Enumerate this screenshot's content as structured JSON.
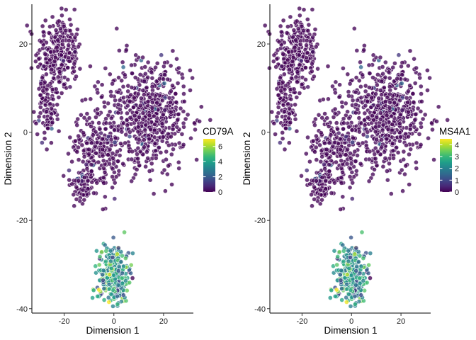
{
  "chart_data": [
    {
      "type": "scatter",
      "xlabel": "Dimension 1",
      "ylabel": "Dimension 2",
      "xlim": [
        -33,
        32
      ],
      "ylim": [
        -41,
        29
      ],
      "x_ticks": [
        -20,
        0,
        20
      ],
      "y_ticks": [
        -40,
        -20,
        0,
        20
      ],
      "grid": false,
      "color_by": "CD79A",
      "color_range": [
        0,
        7
      ],
      "legend_ticks": [
        0,
        2,
        4,
        6
      ],
      "legend_position": "right",
      "clusters": [
        {
          "cx": -22,
          "cy": 18,
          "sx": 4.5,
          "sy": 4.2,
          "n": 260,
          "mean_value": 0.1
        },
        {
          "cx": -27,
          "cy": 6,
          "sx": 2.3,
          "sy": 3.6,
          "n": 110,
          "mean_value": 0.1
        },
        {
          "cx": 14,
          "cy": 4,
          "sx": 8.5,
          "sy": 6.5,
          "n": 620,
          "mean_value": 0.15
        },
        {
          "cx": -7,
          "cy": -4,
          "sx": 5,
          "sy": 4.5,
          "n": 220,
          "mean_value": 0.12
        },
        {
          "cx": -13,
          "cy": -12,
          "sx": 2.5,
          "sy": 1.8,
          "n": 70,
          "mean_value": 0.1
        },
        {
          "cx": 0,
          "cy": -32,
          "sx": 3.2,
          "sy": 3.2,
          "n": 340,
          "mean_value": 3.6
        }
      ]
    },
    {
      "type": "scatter",
      "xlabel": "Dimension 1",
      "ylabel": "Dimension 2",
      "xlim": [
        -33,
        32
      ],
      "ylim": [
        -41,
        29
      ],
      "x_ticks": [
        -20,
        0,
        20
      ],
      "y_ticks": [
        -40,
        -20,
        0,
        20
      ],
      "grid": false,
      "color_by": "MS4A1",
      "color_range": [
        0,
        4.5
      ],
      "legend_ticks": [
        0,
        1,
        2,
        3,
        4
      ],
      "legend_position": "right",
      "clusters": [
        {
          "cx": -22,
          "cy": 18,
          "sx": 4.5,
          "sy": 4.2,
          "n": 260,
          "mean_value": 0.05
        },
        {
          "cx": -27,
          "cy": 6,
          "sx": 2.3,
          "sy": 3.6,
          "n": 110,
          "mean_value": 0.05
        },
        {
          "cx": 14,
          "cy": 4,
          "sx": 8.5,
          "sy": 6.5,
          "n": 620,
          "mean_value": 0.1
        },
        {
          "cx": -7,
          "cy": -4,
          "sx": 5,
          "sy": 4.5,
          "n": 220,
          "mean_value": 0.08
        },
        {
          "cx": -13,
          "cy": -12,
          "sx": 2.5,
          "sy": 1.8,
          "n": 70,
          "mean_value": 0.05
        },
        {
          "cx": 0,
          "cy": -32,
          "sx": 3.2,
          "sy": 3.2,
          "n": 340,
          "mean_value": 2.2
        }
      ]
    }
  ],
  "colors": {
    "viridis": [
      "#440154",
      "#482878",
      "#3e4989",
      "#31688e",
      "#26828e",
      "#1f9e89",
      "#35b779",
      "#6ece58",
      "#b5de2b",
      "#fde725"
    ],
    "point_outline": "#ffffff",
    "axis": "#000000"
  }
}
